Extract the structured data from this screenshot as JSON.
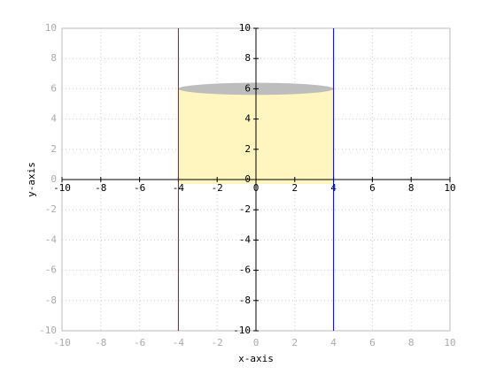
{
  "chart_data": {
    "type": "line",
    "xlabel": "x-axis",
    "ylabel": "y-axis",
    "xlim": [
      -10,
      10
    ],
    "ylim": [
      -10,
      10
    ],
    "xticks": [
      -10,
      -8,
      -6,
      -4,
      -2,
      0,
      2,
      4,
      6,
      8,
      10
    ],
    "yticks": [
      -10,
      -8,
      -6,
      -4,
      -2,
      0,
      2,
      4,
      6,
      8,
      10
    ],
    "grid": true,
    "fill": {
      "color": "#fff5bf",
      "x": [
        -4,
        4,
        4,
        -4
      ],
      "values": [
        -0.3,
        -0.3,
        6,
        6
      ]
    },
    "ellipse": {
      "color": "#bdbdbd",
      "cx": 0,
      "cy": 6,
      "rx": 4,
      "ry": 0.4
    },
    "series": [
      {
        "color": "#b8002a",
        "x": [
          -4,
          -4
        ],
        "values": [
          -10,
          10
        ]
      },
      {
        "color": "#0000c8",
        "x": [
          4,
          4
        ],
        "values": [
          -10,
          10
        ]
      }
    ]
  }
}
